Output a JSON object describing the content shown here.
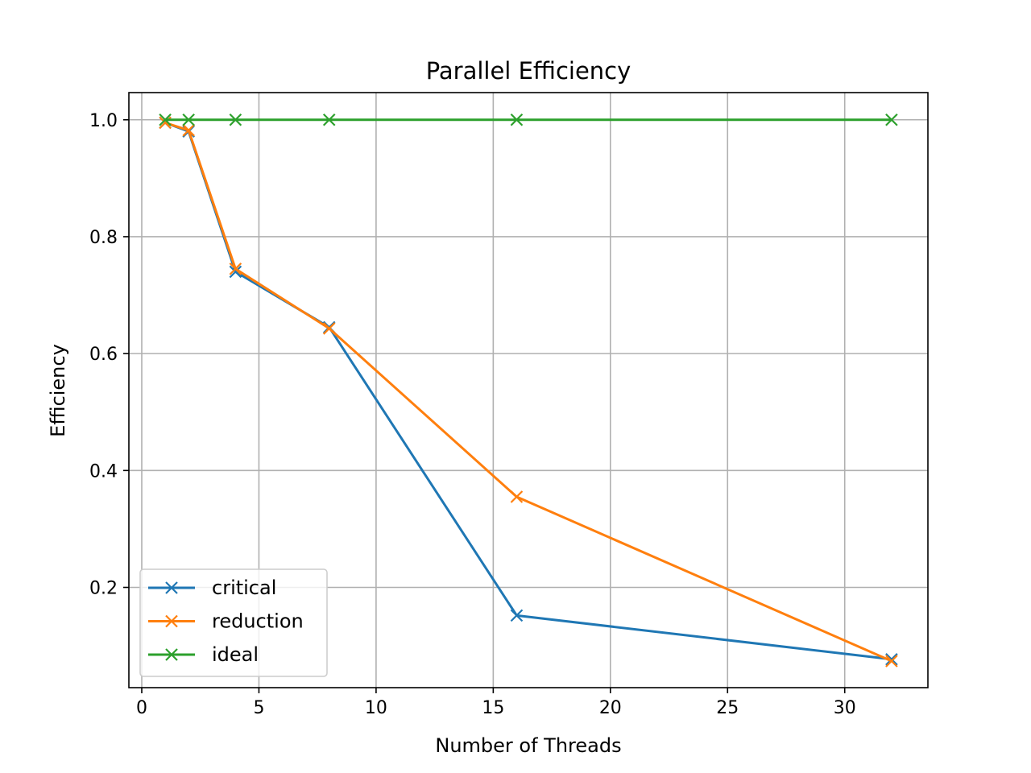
{
  "chart_data": {
    "type": "line",
    "title": "Parallel Efficiency",
    "xlabel": "Number of Threads",
    "ylabel": "Efficiency",
    "xlim": [
      -0.55,
      33.55
    ],
    "ylim": [
      0.0285,
      1.0465
    ],
    "xticks": [
      0,
      5,
      10,
      15,
      20,
      25,
      30
    ],
    "yticks": [
      0.2,
      0.4,
      0.6,
      0.8,
      1.0
    ],
    "xtick_labels": [
      "0",
      "5",
      "10",
      "15",
      "20",
      "25",
      "30"
    ],
    "ytick_labels": [
      "0.2",
      "0.4",
      "0.6",
      "0.8",
      "1.0"
    ],
    "grid": true,
    "legend_position": "lower-left",
    "marker": "x",
    "x": [
      1,
      2,
      4,
      8,
      16,
      32
    ],
    "series": [
      {
        "name": "critical",
        "color": "#1f77b4",
        "values": [
          0.995,
          0.98,
          0.74,
          0.645,
          0.152,
          0.077
        ]
      },
      {
        "name": "reduction",
        "color": "#ff7f0e",
        "values": [
          0.995,
          0.982,
          0.745,
          0.643,
          0.355,
          0.074
        ]
      },
      {
        "name": "ideal",
        "color": "#2ca02c",
        "values": [
          1.0,
          1.0,
          1.0,
          1.0,
          1.0,
          1.0
        ]
      }
    ]
  }
}
